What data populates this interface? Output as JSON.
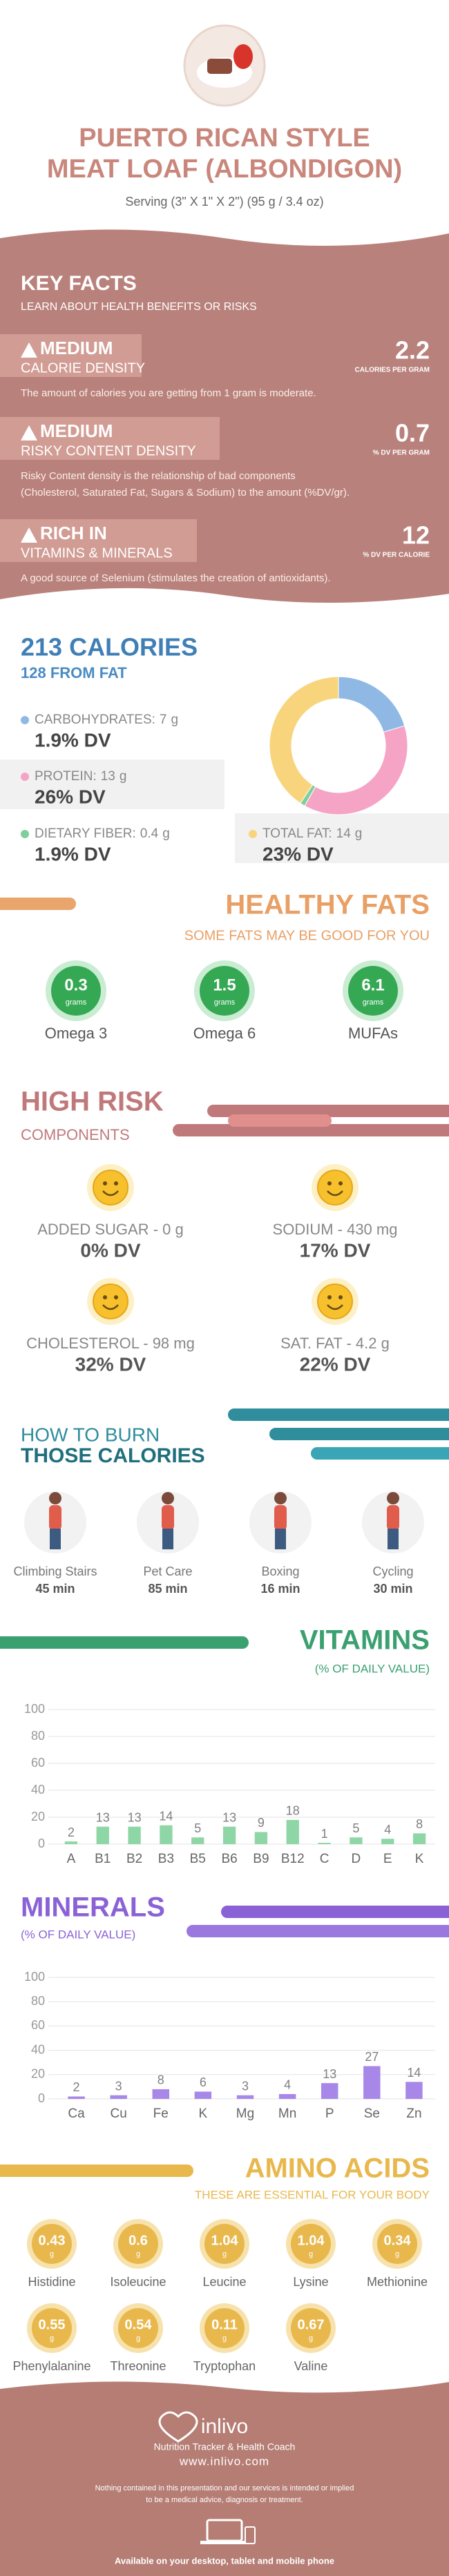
{
  "header": {
    "title": [
      "PUERTO RICAN STYLE",
      "MEAT LOAF (ALBONDIGON)"
    ],
    "serving": "Serving (3\" X 1\" X 2\") (95 g / 3.4 oz)"
  },
  "key_facts": {
    "title": "KEY FACTS",
    "subtitle": "LEARN ABOUT HEALTH BENEFITS OR RISKS",
    "facts": [
      {
        "level": "MEDIUM",
        "name": "CALORIE DENSITY",
        "value": 2.2,
        "unit": "CALORIES PER GRAM",
        "description": [
          "The amount of calories you are getting from 1 gram is moderate."
        ]
      },
      {
        "level": "MEDIUM",
        "name": "RISKY CONTENT DENSITY",
        "value": 0.7,
        "unit": "% DV PER GRAM",
        "description": [
          "Risky Content density is the relationship of bad components",
          "(Cholesterol, Saturated Fat, Sugars & Sodium) to the amount (%DV/gr)."
        ]
      },
      {
        "level": "RICH  IN",
        "name": "VITAMINS & MINERALS",
        "value": 12,
        "unit": "% DV PER CALORIE",
        "description": [
          "A good source of Selenium (stimulates the creation of antioxidants)."
        ]
      }
    ]
  },
  "calories": {
    "title": "213 CALORIES",
    "subtitle": "128 FROM FAT",
    "nutrients": [
      {
        "name": "CARBOHYDRATES:",
        "amount": 7,
        "unit": "g",
        "dv": "1.9% DV",
        "color": "#8fb9e4"
      },
      {
        "name": "PROTEIN:",
        "amount": 13,
        "unit": "g",
        "dv": "26% DV",
        "color": "#f5a4c6"
      },
      {
        "name": "DIETARY FIBER:",
        "amount": 0.4,
        "unit": "g",
        "dv": "1.9% DV",
        "color": "#7fcf9c"
      },
      {
        "name": "TOTAL FAT:",
        "amount": 14,
        "unit": "g",
        "dv": "23% DV",
        "color": "#f8d47d"
      }
    ]
  },
  "healthy_fats": {
    "title": "HEALTHY FATS",
    "subtitle": "SOME FATS MAY BE GOOD FOR YOU",
    "items": [
      {
        "value": 0.3,
        "unit": "grams",
        "name": "Omega 3"
      },
      {
        "value": 1.5,
        "unit": "grams",
        "name": "Omega 6"
      },
      {
        "value": 6.1,
        "unit": "grams",
        "name": "MUFAs"
      }
    ]
  },
  "high_risk": {
    "title": "HIGH RISK",
    "subtitle": "COMPONENTS",
    "items": [
      {
        "label": "ADDED SUGAR - 0 g",
        "dv": "0% DV"
      },
      {
        "label": "SODIUM - 430 mg",
        "dv": "17% DV"
      },
      {
        "label": "CHOLESTEROL - 98 mg",
        "dv": "32% DV"
      },
      {
        "label": "SAT. FAT - 4.2 g",
        "dv": "22% DV"
      }
    ]
  },
  "burn": {
    "title": [
      "HOW TO BURN",
      "THOSE CALORIES"
    ],
    "activities": [
      {
        "name": "Climbing Stairs",
        "time": "45 min"
      },
      {
        "name": "Pet Care",
        "time": "85 min"
      },
      {
        "name": "Boxing",
        "time": "16 min"
      },
      {
        "name": "Cycling",
        "time": "30 min"
      }
    ]
  },
  "vitamins": {
    "title": "VITAMINS",
    "subtitle": "(% OF DAILY VALUE)",
    "categories": [
      "A",
      "B1",
      "B2",
      "B3",
      "B5",
      "B6",
      "B9",
      "B12",
      "C",
      "D",
      "E",
      "K"
    ],
    "values": [
      2,
      13,
      13,
      14,
      5,
      13,
      9,
      18,
      1,
      5,
      4,
      8
    ],
    "ylim": [
      0,
      100
    ],
    "yticks": [
      0,
      20,
      40,
      60,
      80,
      100
    ],
    "color": "#8fd6a6"
  },
  "minerals": {
    "title": "MINERALS",
    "subtitle": "(% OF DAILY VALUE)",
    "categories": [
      "Ca",
      "Cu",
      "Fe",
      "K",
      "Mg",
      "Mn",
      "P",
      "Se",
      "Zn"
    ],
    "values": [
      2,
      3,
      8,
      6,
      3,
      4,
      13,
      27,
      14
    ],
    "ylim": [
      0,
      100
    ],
    "yticks": [
      0,
      20,
      40,
      60,
      80,
      100
    ],
    "color": "#a787e8"
  },
  "amino_acids": {
    "title": "AMINO ACIDS",
    "subtitle": "THESE ARE ESSENTIAL FOR YOUR BODY",
    "unit": "g",
    "items": [
      {
        "name": "Histidine",
        "value": 0.43
      },
      {
        "name": "Isoleucine",
        "value": 0.6
      },
      {
        "name": "Leucine",
        "value": 1.04
      },
      {
        "name": "Lysine",
        "value": 1.04
      },
      {
        "name": "Methionine",
        "value": 0.34
      },
      {
        "name": "Phenylalanine",
        "value": 0.55
      },
      {
        "name": "Threonine",
        "value": 0.54
      },
      {
        "name": "Tryptophan",
        "value": 0.11
      },
      {
        "name": "Valine",
        "value": 0.67
      }
    ]
  },
  "footer": {
    "brand": "inlivo",
    "tagline": "Nutrition Tracker & Health Coach",
    "url": "www.inlivo.com",
    "disclaimer": [
      "Nothing contained in this presentation and our services is intended or implied",
      "to be a medical advice, diagnosis or treatment."
    ],
    "available": "Available on your desktop, tablet and mobile phone"
  }
}
